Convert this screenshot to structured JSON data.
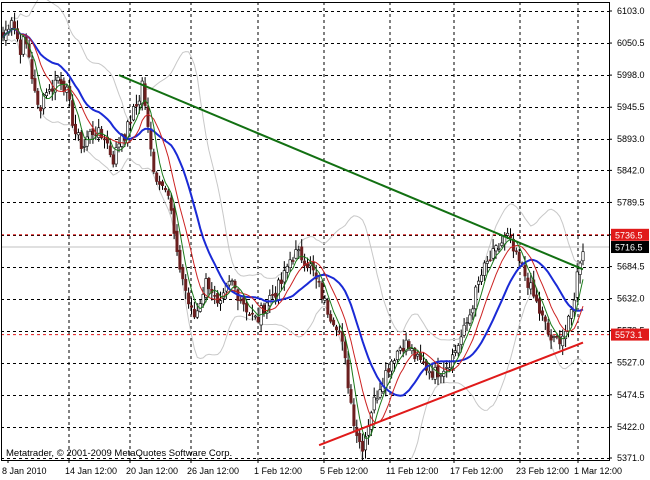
{
  "window": {
    "app": "Metatrader",
    "copyright": "Metatrader, © 2001-2009 MetaQuotes Software Corp."
  },
  "colors": {
    "background": "#ffffff",
    "grid": "#000000",
    "candle_body": "#6b1f1f",
    "candle_wick": "#000000",
    "ma_fast": "#1a7a1a",
    "ma_mid": "#cc2222",
    "ma_slow": "#1a2ad6",
    "bollinger": "#c8c8c8",
    "trend_upper": "#127012",
    "trend_lower": "#e01a1a",
    "level_line": "#e01a1a",
    "current_line": "#c0c0c0",
    "level_label_bg": "#e01a1a",
    "current_label_bg": "#000000"
  },
  "chart_data": {
    "type": "candlestick",
    "title": "",
    "y_range": [
      5371.0,
      6103.0
    ],
    "y_ticks": [
      "6103.0",
      "6050.5",
      "5998.0",
      "5945.5",
      "5893.0",
      "5842.0",
      "5789.5",
      "5736.5",
      "5684.5",
      "5632.0",
      "5579.5",
      "5527.0",
      "5474.5",
      "5422.0",
      "5371.0"
    ],
    "x_ticks": [
      "8 Jan 2010",
      "14 Jan 12:00",
      "20 Jan 12:00",
      "26 Jan 12:00",
      "1 Feb 12:00",
      "5 Feb 12:00",
      "11 Feb 12:00",
      "17 Feb 12:00",
      "23 Feb 12:00",
      "1 Mar 12:00"
    ],
    "grid": true,
    "price_labels": [
      {
        "name": "resistance-level",
        "value": "5736.5"
      },
      {
        "name": "current-price",
        "value": "5716.5"
      },
      {
        "name": "support-level",
        "value": "5573.1"
      }
    ],
    "levels": {
      "resistance": 5736.5,
      "current": 5716.5,
      "support": 5573.1
    },
    "trendlines": [
      {
        "name": "upper",
        "from_bar": 40,
        "from_price": 5998.0,
        "to_bar": 200,
        "to_price": 5680.0
      },
      {
        "name": "lower",
        "from_bar": 109,
        "from_price": 5392.0,
        "to_bar": 200,
        "to_price": 5560.0
      }
    ],
    "anchors": [
      6060,
      6075,
      6095,
      6070,
      6040,
      6055,
      6038,
      5990,
      5945,
      5950,
      5978,
      5970,
      5985,
      5995,
      5990,
      5970,
      5940,
      5905,
      5890,
      5880,
      5898,
      5905,
      5908,
      5895,
      5900,
      5878,
      5860,
      5878,
      5905,
      5900,
      5925,
      5940,
      5955,
      5990,
      5920,
      5870,
      5835,
      5820,
      5830,
      5805,
      5760,
      5700,
      5680,
      5650,
      5620,
      5600,
      5615,
      5640,
      5660,
      5655,
      5630,
      5610,
      5630,
      5650,
      5660,
      5645,
      5635,
      5625,
      5610,
      5602,
      5595,
      5610,
      5625,
      5635,
      5640,
      5650,
      5660,
      5680,
      5700,
      5706,
      5702,
      5700,
      5690,
      5680,
      5660,
      5645,
      5625,
      5610,
      5600,
      5590,
      5560,
      5520,
      5470,
      5430,
      5400,
      5392,
      5420,
      5450,
      5470,
      5490,
      5505,
      5520,
      5535,
      5545,
      5555,
      5560,
      5550,
      5540,
      5530,
      5525,
      5520,
      5515,
      5510,
      5515,
      5520,
      5525,
      5535,
      5550,
      5565,
      5580,
      5600,
      5625,
      5650,
      5670,
      5685,
      5695,
      5705,
      5715,
      5725,
      5735,
      5720,
      5700,
      5690,
      5675,
      5660,
      5640,
      5625,
      5605,
      5590,
      5570,
      5560,
      5565,
      5572,
      5580,
      5600,
      5640,
      5690,
      5716
    ]
  }
}
